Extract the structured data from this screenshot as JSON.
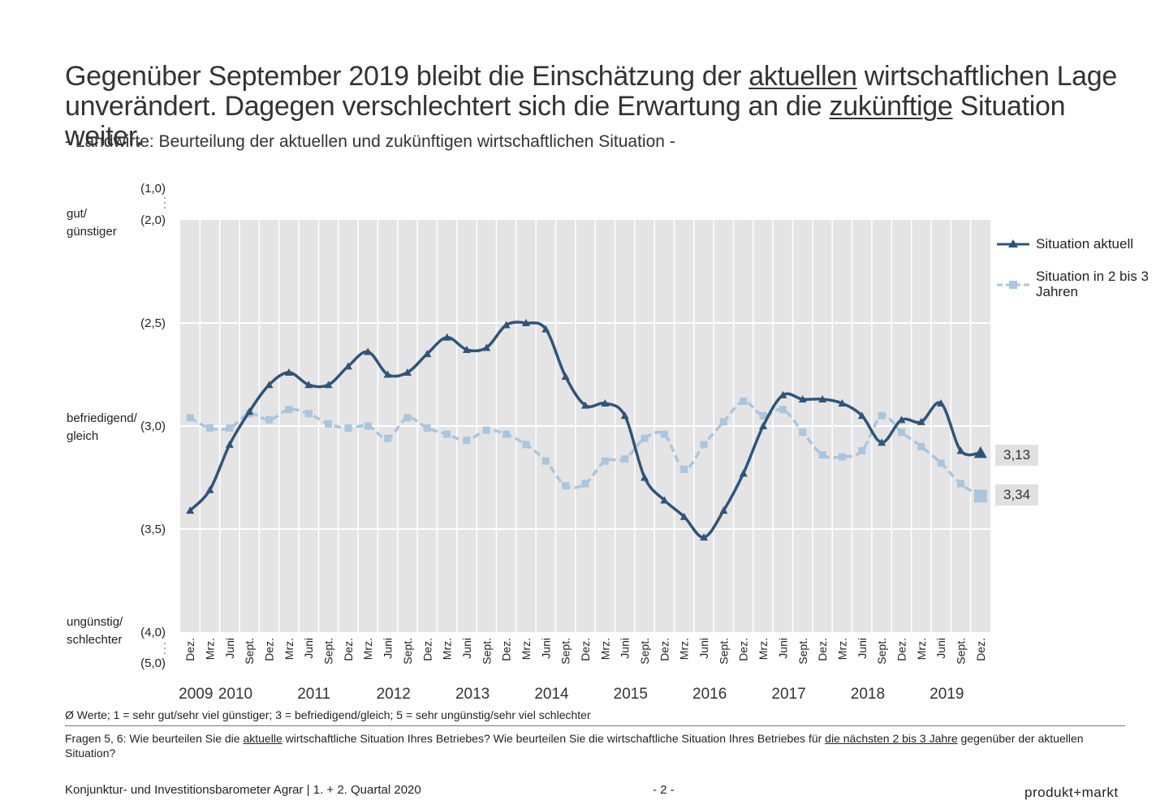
{
  "title": {
    "line1_a": "Gegenüber September 2019 bleibt die Einschätzung der ",
    "line1_u": "aktuellen",
    "line1_b": " wirtschaftlichen Lage",
    "line2_a": "unverändert. Dagegen verschlechtert sich die Erwartung an die ",
    "line2_u": "zukünftige",
    "line2_b": " Situation weiter."
  },
  "subtitle": "- Landwirte: Beurteilung der aktuellen und zukünftigen wirtschaftlichen Situation -",
  "y_category_labels": {
    "top_1": "gut/",
    "top_2": "günstiger",
    "mid_1": "befriedigend/",
    "mid_2": "gleich",
    "bot_1": "ungünstig/",
    "bot_2": "schlechter"
  },
  "colors": {
    "aktuell": "#2e5578",
    "zukunft": "#a9c6dd",
    "plot_bg": "#e4e4e4",
    "grid": "#ffffff"
  },
  "chart_data": {
    "type": "line",
    "ylim": [
      2.0,
      4.0
    ],
    "y_inverted": true,
    "grid": true,
    "legend_position": "right",
    "y_ticks": [
      "(1,0)",
      "(2,0)",
      "(2,5)",
      "(3,0)",
      "(3,5)",
      "(4,0)",
      "(5,0)"
    ],
    "y_tick_values": [
      1.0,
      2.0,
      2.5,
      3.0,
      3.5,
      4.0,
      5.0
    ],
    "x_months": [
      "Dez.",
      "Mrz.",
      "Juni",
      "Sept.",
      "Dez.",
      "Mrz.",
      "Juni",
      "Sept.",
      "Dez.",
      "Mrz.",
      "Juni",
      "Sept.",
      "Dez.",
      "Mrz.",
      "Juni",
      "Sept.",
      "Dez.",
      "Mrz.",
      "Juni",
      "Sept.",
      "Dez.",
      "Mrz.",
      "Juni",
      "Sept.",
      "Dez.",
      "Mrz.",
      "Juni",
      "Sept.",
      "Dez.",
      "Mrz.",
      "Juni",
      "Sept.",
      "Dez.",
      "Mrz.",
      "Juni",
      "Sept.",
      "Dez.",
      "Mrz.",
      "Juni",
      "Sept.",
      "Dez."
    ],
    "x_years": [
      "2009",
      "2010",
      "2011",
      "2012",
      "2013",
      "2014",
      "2015",
      "2016",
      "2017",
      "2018",
      "2019"
    ],
    "series": [
      {
        "name": "Situation aktuell",
        "values": [
          3.41,
          3.31,
          3.09,
          2.93,
          2.8,
          2.74,
          2.8,
          2.8,
          2.71,
          2.64,
          2.75,
          2.74,
          2.65,
          2.57,
          2.63,
          2.62,
          2.51,
          2.5,
          2.53,
          2.76,
          2.9,
          2.89,
          2.95,
          3.25,
          3.36,
          3.44,
          3.54,
          3.41,
          3.23,
          3.0,
          2.85,
          2.87,
          2.87,
          2.89,
          2.95,
          3.08,
          2.97,
          2.98,
          2.89,
          3.12,
          3.13
        ]
      },
      {
        "name": "Situation in 2 bis 3 Jahren",
        "values": [
          2.96,
          3.01,
          3.01,
          2.94,
          2.97,
          2.92,
          2.94,
          2.99,
          3.01,
          3.0,
          3.06,
          2.96,
          3.01,
          3.04,
          3.07,
          3.02,
          3.04,
          3.09,
          3.17,
          3.29,
          3.28,
          3.17,
          3.16,
          3.06,
          3.04,
          3.21,
          3.09,
          2.98,
          2.88,
          2.95,
          2.92,
          3.03,
          3.14,
          3.15,
          3.12,
          2.95,
          3.03,
          3.1,
          3.18,
          3.28,
          3.34
        ]
      }
    ],
    "end_labels": [
      "3,13",
      "3,34"
    ]
  },
  "note": "Ø Werte; 1 = sehr gut/sehr viel günstiger; 3 = befriedigend/gleich; 5 = sehr ungünstig/sehr viel schlechter",
  "question": {
    "p1": "Fragen 5, 6: Wie beurteilen Sie die ",
    "u1": "aktuelle",
    "p2": " wirtschaftliche Situation Ihres Betriebes? Wie beurteilen Sie die wirtschaftliche Situation Ihres Betriebes für ",
    "u2": "die nächsten 2 bis 3 Jahre",
    "p3": " gegenüber der aktuellen Situation?"
  },
  "footer": {
    "left": "Konjunktur- und Investitionsbarometer Agrar | 1. + 2. Quartal 2020",
    "page": "- 2 -",
    "brand": "produkt+markt"
  }
}
